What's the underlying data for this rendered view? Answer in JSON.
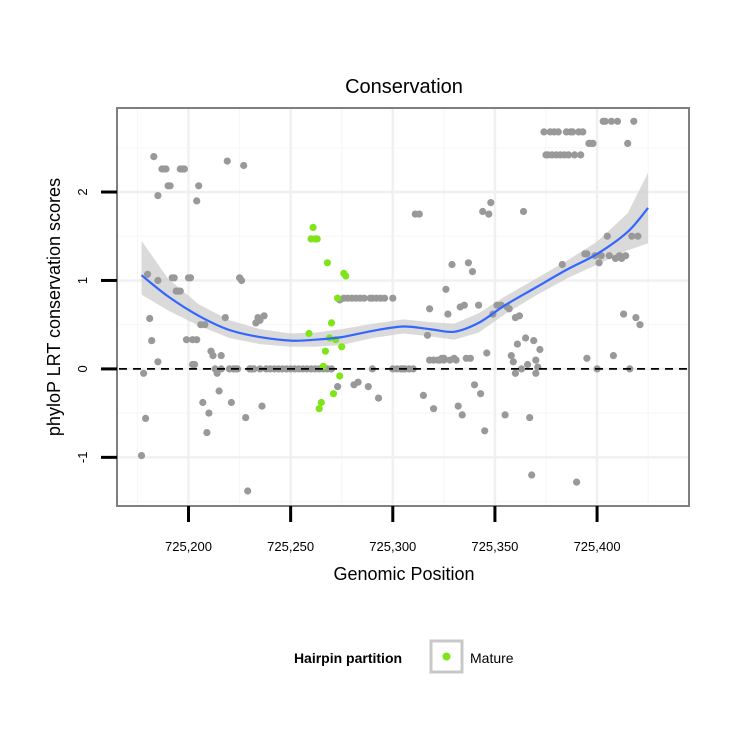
{
  "chart_data": {
    "type": "scatter",
    "title": "Conservation",
    "xlabel": "Genomic Position",
    "ylabel": "phyloP LRT conservation scores",
    "xlim": [
      725165,
      725445
    ],
    "ylim": [
      -1.55,
      2.95
    ],
    "x_ticks": [
      725200,
      725250,
      725300,
      725350,
      725400
    ],
    "x_tick_labels": [
      "725,200",
      "725,250",
      "725,300",
      "725,350",
      "725,400"
    ],
    "y_ticks": [
      -1,
      0,
      1,
      2
    ],
    "y_tick_labels": [
      "-1",
      "0",
      "1",
      "2"
    ],
    "grid": true,
    "reference_line": {
      "y": 0,
      "style": "dashed"
    },
    "colors": {
      "other": "#999999",
      "mature": "#7FE51A",
      "smooth": "#3366FF",
      "ribbon": "#CCCCCC"
    },
    "legend": {
      "title": "Hairpin partition",
      "position": "bottom",
      "entries": [
        "Mature"
      ]
    },
    "series": [
      {
        "name": "",
        "points": [
          [
            725177,
            -0.98
          ],
          [
            725178,
            -0.05
          ],
          [
            725179,
            -0.56
          ],
          [
            725180,
            1.07
          ],
          [
            725181,
            0.57
          ],
          [
            725182,
            0.32
          ],
          [
            725183,
            2.4
          ],
          [
            725185,
            1.96
          ],
          [
            725185,
            0.08
          ],
          [
            725187,
            2.26
          ],
          [
            725188,
            2.26
          ],
          [
            725189,
            2.26
          ],
          [
            725190,
            2.07
          ],
          [
            725191,
            2.07
          ],
          [
            725192,
            1.03
          ],
          [
            725193,
            1.03
          ],
          [
            725194,
            0.88
          ],
          [
            725195,
            0.88
          ],
          [
            725196,
            2.26
          ],
          [
            725197,
            2.26
          ],
          [
            725198,
            2.26
          ],
          [
            725199,
            0.33
          ],
          [
            725200,
            1.03
          ],
          [
            725201,
            1.03
          ],
          [
            725202,
            0.33
          ],
          [
            725203,
            0.05
          ],
          [
            725204,
            1.9
          ],
          [
            725205,
            2.07
          ],
          [
            725206,
            0.5
          ],
          [
            725207,
            -0.38
          ],
          [
            725208,
            0.5
          ],
          [
            725209,
            -0.72
          ],
          [
            725210,
            -0.5
          ],
          [
            725211,
            0.2
          ],
          [
            725212,
            0.15
          ],
          [
            725213,
            0.0
          ],
          [
            725214,
            -0.05
          ],
          [
            725215,
            -0.25
          ],
          [
            725216,
            0.0
          ],
          [
            725218,
            0.58
          ],
          [
            725219,
            2.35
          ],
          [
            725220,
            0.0
          ],
          [
            725221,
            -0.38
          ],
          [
            725222,
            0.0
          ],
          [
            725223,
            0.0
          ],
          [
            725224,
            0.0
          ],
          [
            725225,
            1.03
          ],
          [
            725226,
            1.0
          ],
          [
            725227,
            2.3
          ],
          [
            725228,
            -0.55
          ],
          [
            725229,
            -1.38
          ],
          [
            725230,
            0.0
          ],
          [
            725231,
            0.0
          ],
          [
            725232,
            0.0
          ],
          [
            725233,
            0.52
          ],
          [
            725234,
            0.58
          ],
          [
            725235,
            0.55
          ],
          [
            725236,
            -0.42
          ],
          [
            725237,
            0.6
          ],
          [
            725238,
            0.0
          ],
          [
            725240,
            0.0
          ],
          [
            725242,
            0.0
          ],
          [
            725244,
            0.0
          ],
          [
            725246,
            0.0
          ],
          [
            725248,
            0.0
          ],
          [
            725250,
            0.0
          ],
          [
            725252,
            0.0
          ],
          [
            725254,
            0.0
          ],
          [
            725256,
            0.0
          ],
          [
            725258,
            0.0
          ],
          [
            725260,
            0.0
          ],
          [
            725262,
            0.0
          ],
          [
            725264,
            0.0
          ],
          [
            725266,
            0.0
          ],
          [
            725268,
            0.0
          ],
          [
            725270,
            0.0
          ],
          [
            725273,
            -0.2
          ],
          [
            725274,
            0.78
          ],
          [
            725276,
            0.8
          ],
          [
            725278,
            0.8
          ],
          [
            725280,
            0.8
          ],
          [
            725281,
            -0.18
          ],
          [
            725282,
            0.8
          ],
          [
            725283,
            -0.15
          ],
          [
            725284,
            0.8
          ],
          [
            725286,
            0.8
          ],
          [
            725288,
            -0.2
          ],
          [
            725289,
            0.8
          ],
          [
            725290,
            0.8
          ],
          [
            725292,
            0.8
          ],
          [
            725293,
            -0.33
          ],
          [
            725294,
            0.8
          ],
          [
            725296,
            0.8
          ],
          [
            725300,
            0.0
          ],
          [
            725302,
            0.0
          ],
          [
            725304,
            0.0
          ],
          [
            725306,
            0.0
          ],
          [
            725308,
            0.0
          ],
          [
            725310,
            0.0
          ],
          [
            725311,
            1.75
          ],
          [
            725313,
            1.75
          ],
          [
            725315,
            -0.3
          ],
          [
            725317,
            0.38
          ],
          [
            725318,
            0.68
          ],
          [
            725320,
            -0.45
          ],
          [
            725320,
            0.1
          ],
          [
            725322,
            0.1
          ],
          [
            725323,
            0.1
          ],
          [
            725324,
            0.12
          ],
          [
            725325,
            0.12
          ],
          [
            725326,
            0.9
          ],
          [
            725327,
            0.62
          ],
          [
            725328,
            0.1
          ],
          [
            725329,
            1.18
          ],
          [
            725330,
            0.12
          ],
          [
            725331,
            0.1
          ],
          [
            725332,
            -0.42
          ],
          [
            725333,
            0.7
          ],
          [
            725334,
            -0.52
          ],
          [
            725335,
            0.72
          ],
          [
            725336,
            0.12
          ],
          [
            725337,
            1.2
          ],
          [
            725338,
            0.12
          ],
          [
            725339,
            1.1
          ],
          [
            725340,
            -0.18
          ],
          [
            725342,
            0.72
          ],
          [
            725343,
            -0.28
          ],
          [
            725344,
            1.78
          ],
          [
            725345,
            -0.7
          ],
          [
            725346,
            0.18
          ],
          [
            725347,
            1.75
          ],
          [
            725348,
            1.88
          ],
          [
            725349,
            0.62
          ],
          [
            725351,
            0.72
          ],
          [
            725353,
            0.72
          ],
          [
            725355,
            -0.52
          ],
          [
            725356,
            0.7
          ],
          [
            725357,
            0.68
          ],
          [
            725358,
            0.15
          ],
          [
            725359,
            0.08
          ],
          [
            725360,
            -0.05
          ],
          [
            725361,
            0.28
          ],
          [
            725362,
            0.6
          ],
          [
            725363,
            0.0
          ],
          [
            725364,
            1.78
          ],
          [
            725365,
            0.35
          ],
          [
            725366,
            0.05
          ],
          [
            725367,
            -0.55
          ],
          [
            725368,
            -1.2
          ],
          [
            725369,
            0.32
          ],
          [
            725370,
            -0.05
          ],
          [
            725371,
            0.02
          ],
          [
            725372,
            0.22
          ],
          [
            725374,
            2.68
          ],
          [
            725375,
            2.42
          ],
          [
            725376,
            2.42
          ],
          [
            725377,
            2.68
          ],
          [
            725378,
            2.42
          ],
          [
            725379,
            2.68
          ],
          [
            725380,
            2.42
          ],
          [
            725381,
            2.68
          ],
          [
            725382,
            2.42
          ],
          [
            725383,
            1.18
          ],
          [
            725384,
            2.42
          ],
          [
            725385,
            2.68
          ],
          [
            725386,
            2.42
          ],
          [
            725387,
            2.68
          ],
          [
            725388,
            2.68
          ],
          [
            725389,
            2.42
          ],
          [
            725390,
            -1.28
          ],
          [
            725391,
            2.68
          ],
          [
            725392,
            2.42
          ],
          [
            725393,
            2.68
          ],
          [
            725394,
            1.3
          ],
          [
            725395,
            0.12
          ],
          [
            725396,
            2.55
          ],
          [
            725397,
            2.55
          ],
          [
            725398,
            2.55
          ],
          [
            725399,
            1.28
          ],
          [
            725400,
            0.0
          ],
          [
            725401,
            1.2
          ],
          [
            725402,
            1.28
          ],
          [
            725403,
            2.8
          ],
          [
            725404,
            2.8
          ],
          [
            725405,
            1.5
          ],
          [
            725406,
            1.28
          ],
          [
            725407,
            2.8
          ],
          [
            725408,
            0.15
          ],
          [
            725409,
            1.25
          ],
          [
            725410,
            2.8
          ],
          [
            725411,
            1.28
          ],
          [
            725412,
            1.25
          ],
          [
            725413,
            0.62
          ],
          [
            725414,
            1.28
          ],
          [
            725415,
            2.55
          ],
          [
            725416,
            0.0
          ],
          [
            725417,
            1.5
          ],
          [
            725418,
            2.8
          ],
          [
            725419,
            0.58
          ],
          [
            725420,
            1.5
          ],
          [
            725421,
            0.5
          ],
          [
            725185,
            1.0
          ],
          [
            725196,
            0.88
          ],
          [
            725202,
            0.05
          ],
          [
            725204,
            0.33
          ],
          [
            725216,
            0.15
          ],
          [
            725230,
            0.0
          ],
          [
            725235,
            0.0
          ],
          [
            725290,
            0.0
          ],
          [
            725300,
            0.8
          ],
          [
            725305,
            0.0
          ],
          [
            725318,
            0.1
          ],
          [
            725325,
            0.1
          ],
          [
            725360,
            0.58
          ],
          [
            725370,
            0.1
          ],
          [
            725395,
            1.3
          ]
        ]
      },
      {
        "name": "Mature",
        "points": [
          [
            725259,
            0.4
          ],
          [
            725260,
            1.47
          ],
          [
            725261,
            1.6
          ],
          [
            725262,
            1.47
          ],
          [
            725263,
            1.47
          ],
          [
            725264,
            -0.45
          ],
          [
            725265,
            -0.38
          ],
          [
            725266,
            0.03
          ],
          [
            725267,
            0.2
          ],
          [
            725268,
            1.2
          ],
          [
            725269,
            0.35
          ],
          [
            725270,
            0.52
          ],
          [
            725271,
            -0.28
          ],
          [
            725272,
            0.33
          ],
          [
            725273,
            0.8
          ],
          [
            725274,
            -0.08
          ],
          [
            725275,
            0.25
          ],
          [
            725276,
            1.08
          ],
          [
            725277,
            1.05
          ]
        ]
      }
    ],
    "smooth": {
      "x": [
        725177,
        725190,
        725205,
        725220,
        725235,
        725250,
        725262,
        725275,
        725290,
        725305,
        725318,
        725330,
        725342,
        725355,
        725370,
        725385,
        725400,
        725415,
        725425
      ],
      "y": [
        1.06,
        0.82,
        0.6,
        0.44,
        0.36,
        0.32,
        0.33,
        0.36,
        0.43,
        0.48,
        0.45,
        0.42,
        0.52,
        0.72,
        0.92,
        1.12,
        1.3,
        1.55,
        1.82
      ],
      "lower": [
        0.84,
        0.66,
        0.49,
        0.35,
        0.28,
        0.25,
        0.25,
        0.27,
        0.35,
        0.4,
        0.37,
        0.33,
        0.41,
        0.62,
        0.83,
        1.02,
        1.18,
        1.34,
        1.42
      ],
      "upper": [
        1.45,
        1.02,
        0.73,
        0.55,
        0.45,
        0.4,
        0.41,
        0.45,
        0.51,
        0.56,
        0.53,
        0.51,
        0.63,
        0.82,
        1.02,
        1.22,
        1.44,
        1.76,
        2.22
      ]
    }
  }
}
